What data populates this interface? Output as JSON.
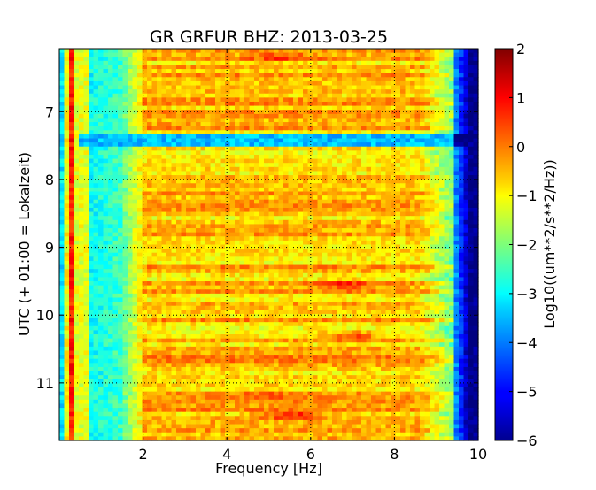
{
  "chart_data": {
    "type": "heatmap",
    "title": "GR GRFUR BHZ: 2013-03-25",
    "xlabel": "Frequency [Hz]",
    "ylabel": "UTC (+ 01:00 = Lokalzeit)",
    "colorbar_label": "Log10((um**2/s**2/Hz))",
    "xlim": [
      0,
      10
    ],
    "ylim_hours": [
      6.07,
      11.85
    ],
    "y_inverted": true,
    "x_ticks": [
      2,
      4,
      6,
      8,
      10
    ],
    "x_tick_labels": [
      "2",
      "4",
      "6",
      "8",
      "10"
    ],
    "y_ticks": [
      7,
      8,
      9,
      10,
      11
    ],
    "y_tick_labels": [
      "7",
      "8",
      "9",
      "10",
      "11"
    ],
    "color_range": [
      -6,
      2
    ],
    "colorbar_ticks": [
      2,
      1,
      0,
      -1,
      -2,
      -3,
      -4,
      -5,
      -6
    ],
    "colorbar_tick_labels": [
      "2",
      "1",
      "0",
      "−1",
      "−2",
      "−3",
      "−4",
      "−5",
      "−6"
    ],
    "colormap": "jet",
    "grid": true,
    "grid_style": "dotted",
    "description_of_field": {
      "peak_band_hz": [
        0.3,
        0.35
      ],
      "peak_level": 1.2,
      "low_band_hz": [
        0.7,
        1.4
      ],
      "low_band_level": -3.0,
      "main_band_hz": [
        2.0,
        9.0
      ],
      "main_band_level": -0.5,
      "cutoff_hz": 9.4,
      "above_cutoff_level": -6.0,
      "quiet_stripe_hours": [
        7.35,
        7.5
      ],
      "quiet_stripe_level": -3.5,
      "hot_spots": [
        {
          "x_hz": 5.3,
          "y_hour": 6.2,
          "level": 0.6
        },
        {
          "x_hz": 6.8,
          "y_hour": 9.55,
          "level": 0.8
        },
        {
          "x_hz": 5.5,
          "y_hour": 11.48,
          "level": 0.9
        },
        {
          "x_hz": 4.9,
          "y_hour": 11.2,
          "level": 0.5
        },
        {
          "x_hz": 7.0,
          "y_hour": 10.3,
          "level": 0.4
        }
      ]
    }
  }
}
